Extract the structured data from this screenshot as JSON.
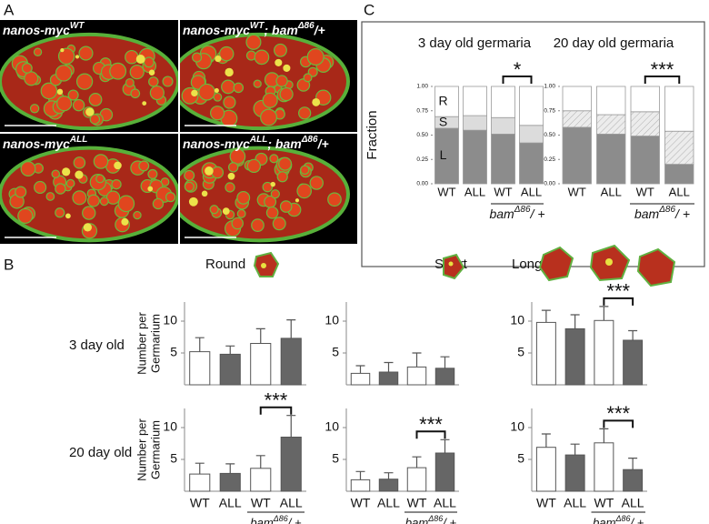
{
  "figure": {
    "panel_labels": [
      "A",
      "B",
      "C"
    ],
    "images": [
      {
        "label": [
          "nanos-myc",
          "WT"
        ]
      },
      {
        "label": [
          "nanos-myc",
          "WT",
          "; bam",
          "Δ86",
          "/+"
        ]
      },
      {
        "label": [
          "nanos-myc",
          "ALL"
        ]
      },
      {
        "label": [
          "nanos-myc",
          "ALL",
          "; bam",
          "Δ86",
          "/+"
        ]
      }
    ],
    "column_titles": [
      "Round",
      "Short",
      "Long"
    ],
    "row_titles": [
      "3 day old",
      "20 day old"
    ]
  },
  "chart_data": [
    {
      "type": "bar",
      "stacked": true,
      "title": "3 day old germaria",
      "ylabel": "Fraction",
      "categories": [
        "WT",
        "ALL",
        "WT",
        "ALL"
      ],
      "group_label": [
        "bam",
        "Δ86",
        "/ +"
      ],
      "ylim": [
        0,
        1
      ],
      "yticks": [
        {
          "value": 0,
          "label": "0.00"
        },
        {
          "value": 0.25,
          "label": "0.25"
        },
        {
          "value": 0.5,
          "label": "0.50"
        },
        {
          "value": 0.75,
          "label": "0.75"
        },
        {
          "value": 1,
          "label": "1.00"
        }
      ],
      "series": [
        {
          "name": "L",
          "color": "#8c8c8c",
          "values": [
            0.57,
            0.55,
            0.51,
            0.42
          ]
        },
        {
          "name": "S",
          "color": "#dcdcdc",
          "values": [
            0.12,
            0.15,
            0.17,
            0.18
          ]
        },
        {
          "name": "R",
          "color": "#ffffff",
          "values": [
            0.31,
            0.3,
            0.32,
            0.4
          ]
        }
      ],
      "annotations": [
        {
          "text": "*",
          "between": [
            2,
            3
          ]
        }
      ]
    },
    {
      "type": "bar",
      "stacked": true,
      "title": "20 day old germaria",
      "categories": [
        "WT",
        "ALL",
        "WT",
        "ALL"
      ],
      "group_label": [
        "bam",
        "Δ86",
        "/ +"
      ],
      "ylim": [
        0,
        1
      ],
      "yticks": [
        {
          "value": 0,
          "label": "0.00"
        },
        {
          "value": 0.25,
          "label": "0.25"
        },
        {
          "value": 0.5,
          "label": "0.50"
        },
        {
          "value": 0.75,
          "label": "0.75"
        },
        {
          "value": 1,
          "label": "1.00"
        }
      ],
      "series": [
        {
          "color": "#8c8c8c",
          "values": [
            0.58,
            0.51,
            0.49,
            0.2
          ]
        },
        {
          "color": "#e4e4e4",
          "hatch": true,
          "values": [
            0.17,
            0.2,
            0.25,
            0.34
          ]
        },
        {
          "color": "#ffffff",
          "values": [
            0.25,
            0.29,
            0.26,
            0.46
          ]
        }
      ],
      "annotations": [
        {
          "text": "***",
          "between": [
            2,
            3
          ]
        }
      ]
    },
    {
      "type": "bar",
      "ylabel": [
        "Number  per",
        "Germarium"
      ],
      "values": [
        5.2,
        4.8,
        6.5,
        7.3
      ],
      "errors": [
        2.2,
        1.3,
        2.3,
        2.9
      ],
      "colors": [
        "#ffffff",
        "#666666",
        "#ffffff",
        "#666666"
      ],
      "ylim": [
        0,
        13
      ],
      "yticks": [
        5,
        10
      ]
    },
    {
      "type": "bar",
      "values": [
        1.8,
        2.0,
        2.8,
        2.6
      ],
      "errors": [
        1.2,
        1.5,
        2.2,
        1.8
      ],
      "colors": [
        "#ffffff",
        "#666666",
        "#ffffff",
        "#666666"
      ],
      "ylim": [
        0,
        13
      ],
      "yticks": [
        5,
        10
      ]
    },
    {
      "type": "bar",
      "values": [
        9.8,
        8.8,
        10.1,
        7.0
      ],
      "errors": [
        1.9,
        2.2,
        2.2,
        1.5
      ],
      "colors": [
        "#ffffff",
        "#666666",
        "#ffffff",
        "#666666"
      ],
      "ylim": [
        0,
        13
      ],
      "yticks": [
        5,
        10
      ],
      "annotations": [
        {
          "text": "***",
          "between": [
            2,
            3
          ]
        }
      ]
    },
    {
      "type": "bar",
      "ylabel": [
        "Number  per",
        "Germarium"
      ],
      "categories": [
        "WT",
        "ALL",
        "WT",
        "ALL"
      ],
      "group_label": [
        "bam",
        "Δ86",
        "/ +"
      ],
      "values": [
        2.7,
        2.8,
        3.6,
        8.5
      ],
      "errors": [
        1.7,
        1.5,
        2.0,
        3.4
      ],
      "colors": [
        "#ffffff",
        "#666666",
        "#ffffff",
        "#666666"
      ],
      "ylim": [
        0,
        13
      ],
      "yticks": [
        5,
        10
      ],
      "annotations": [
        {
          "text": "***",
          "between": [
            2,
            3
          ]
        }
      ]
    },
    {
      "type": "bar",
      "categories": [
        "WT",
        "ALL",
        "WT",
        "ALL"
      ],
      "group_label": [
        "bam",
        "Δ86",
        "/ +"
      ],
      "values": [
        1.8,
        1.9,
        3.7,
        6.0
      ],
      "errors": [
        1.3,
        1.0,
        1.7,
        2.1
      ],
      "colors": [
        "#ffffff",
        "#666666",
        "#ffffff",
        "#666666"
      ],
      "ylim": [
        0,
        13
      ],
      "yticks": [
        5,
        10
      ],
      "annotations": [
        {
          "text": "***",
          "between": [
            2,
            3
          ]
        }
      ]
    },
    {
      "type": "bar",
      "categories": [
        "WT",
        "ALL",
        "WT",
        "ALL"
      ],
      "group_label": [
        "bam",
        "Δ86",
        "/ +"
      ],
      "values": [
        6.9,
        5.7,
        7.6,
        3.4
      ],
      "errors": [
        2.1,
        1.7,
        2.2,
        1.8
      ],
      "colors": [
        "#ffffff",
        "#666666",
        "#ffffff",
        "#666666"
      ],
      "ylim": [
        0,
        13
      ],
      "yticks": [
        5,
        10
      ],
      "annotations": [
        {
          "text": "***",
          "between": [
            2,
            3
          ]
        }
      ]
    }
  ]
}
